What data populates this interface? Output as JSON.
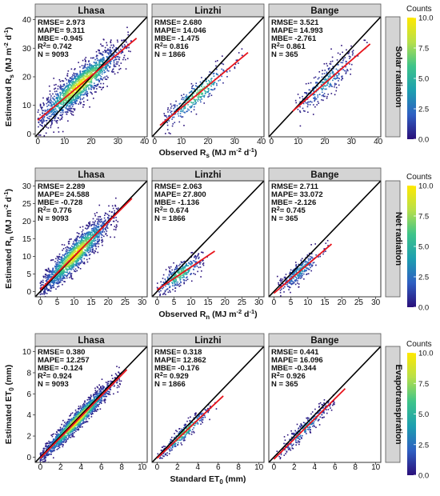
{
  "figure": {
    "color_scale": {
      "title": "Counts",
      "ticks": [
        "0.0",
        "2.5",
        "5.0",
        "7.5",
        "10.0"
      ],
      "stops": [
        "#2a0f7a",
        "#2f5fc2",
        "#1d9fb0",
        "#3ec48a",
        "#b8e04a",
        "#ffe800"
      ]
    },
    "colors": {
      "fit_line": "#e8141b",
      "identity_line": "#000000",
      "strip": "#d4d4d4"
    }
  },
  "chart_data": [
    {
      "type": "scatter",
      "row_title": "Solar radiation",
      "xlabel": {
        "main": "Observed R",
        "sub": "s",
        "unit": " (MJ m",
        "sup1": "-2",
        "mid": " d",
        "sup2": "-1",
        "end": ")"
      },
      "ylabel": {
        "main": "Estimated R",
        "sub": "s",
        "unit": " (MJ m",
        "sup1": "-2",
        "mid": " d",
        "sup2": "-1",
        "end": ")"
      },
      "xlim": [
        -1,
        41
      ],
      "ylim": [
        -1,
        41
      ],
      "xticks": [
        0,
        10,
        20,
        30,
        40
      ],
      "yticks": [
        0,
        10,
        20,
        30,
        40
      ],
      "panels": [
        {
          "site": "Lhasa",
          "stats": [
            "RMSE= 2.973",
            "MAPE= 9.311",
            "MBE= -0.945",
            "R²= 0.742",
            "N = 9093"
          ],
          "fit": {
            "x": [
              0,
              37
            ],
            "y": [
              4.8,
              33.5
            ]
          },
          "points": {
            "count": 9093,
            "x_range": [
              0,
              35
            ],
            "spread": 3.0
          }
        },
        {
          "site": "Linzhi",
          "stats": [
            "RMSE= 2.680",
            "MAPE= 14.046",
            "MBE= -1.475",
            "R²= 0.816",
            "N = 1866"
          ],
          "fit": {
            "x": [
              2,
              35
            ],
            "y": [
              3.0,
              28.5
            ]
          },
          "points": {
            "count": 1866,
            "x_range": [
              3,
              33
            ],
            "spread": 2.5
          }
        },
        {
          "site": "Bange",
          "stats": [
            "RMSE= 3.521",
            "MAPE= 14.993",
            "MBE= -2.761",
            "R²= 0.861",
            "N = 365"
          ],
          "fit": {
            "x": [
              8,
              37
            ],
            "y": [
              8.0,
              31.5
            ]
          },
          "points": {
            "count": 365,
            "x_range": [
              9,
              36
            ],
            "spread": 2.8
          }
        }
      ]
    },
    {
      "type": "scatter",
      "row_title": "Net radiation",
      "xlabel": {
        "main": "Observed R",
        "sub": "n",
        "unit": " (MJ m",
        "sup1": "-2",
        "mid": " d",
        "sup2": "-1",
        "end": ")"
      },
      "ylabel": {
        "main": "Estimated R",
        "sub": "n",
        "unit": " (MJ m",
        "sup1": "-2",
        "mid": " d",
        "sup2": "-1",
        "end": ")"
      },
      "xlim": [
        -1.5,
        31.5
      ],
      "ylim": [
        -1.5,
        31.5
      ],
      "xticks": [
        0,
        5,
        10,
        15,
        20,
        25,
        30
      ],
      "yticks": [
        0,
        5,
        10,
        15,
        20,
        25,
        30
      ],
      "panels": [
        {
          "site": "Lhasa",
          "stats": [
            "RMSE= 2.289",
            "MAPE= 24.588",
            "MBE= -0.728",
            "R²= 0.776",
            "N = 9093"
          ],
          "fit": {
            "x": [
              0,
              27
            ],
            "y": [
              0.5,
              26.5
            ]
          },
          "points": {
            "count": 9093,
            "x_range": [
              0,
              23
            ],
            "spread": 2.2
          }
        },
        {
          "site": "Linzhi",
          "stats": [
            "RMSE= 2.063",
            "MAPE= 27.800",
            "MBE= -1.136",
            "R²= 0.674",
            "N = 1866"
          ],
          "fit": {
            "x": [
              0,
              17
            ],
            "y": [
              0.5,
              11.5
            ]
          },
          "points": {
            "count": 1866,
            "x_range": [
              0,
              15
            ],
            "spread": 1.6
          }
        },
        {
          "site": "Bange",
          "stats": [
            "RMSE= 2.711",
            "MAPE= 33.072",
            "MBE= -2.126",
            "R²= 0.745",
            "N = 365"
          ],
          "fit": {
            "x": [
              0,
              17
            ],
            "y": [
              -0.5,
              13.5
            ]
          },
          "points": {
            "count": 365,
            "x_range": [
              1,
              16
            ],
            "spread": 1.6
          }
        }
      ]
    },
    {
      "type": "scatter",
      "row_title": "Evapotranspiration",
      "xlabel": {
        "main": "Standard ET",
        "sub": "0",
        "unit": " (mm)",
        "sup1": "",
        "mid": "",
        "sup2": "",
        "end": ""
      },
      "ylabel": {
        "main": "Estimated ET",
        "sub": "0",
        "unit": " (mm)",
        "sup1": "",
        "mid": "",
        "sup2": "",
        "end": ""
      },
      "xlim": [
        -0.5,
        10.5
      ],
      "ylim": [
        -0.5,
        10.5
      ],
      "xticks": [
        0,
        2,
        4,
        6,
        8,
        10
      ],
      "yticks": [
        0,
        2,
        4,
        6,
        8,
        10
      ],
      "panels": [
        {
          "site": "Lhasa",
          "stats": [
            "RMSE= 0.380",
            "MAPE= 12.257",
            "MBE= -0.124",
            "R²= 0.924",
            "N = 9093"
          ],
          "fit": {
            "x": [
              0,
              8.5
            ],
            "y": [
              -0.1,
              8.3
            ]
          },
          "points": {
            "count": 9093,
            "x_range": [
              0,
              8
            ],
            "spread": 0.45
          }
        },
        {
          "site": "Linzhi",
          "stats": [
            "RMSE= 0.318",
            "MAPE= 12.862",
            "MBE= -0.176",
            "R²= 0.929",
            "N = 1866"
          ],
          "fit": {
            "x": [
              0,
              6.5
            ],
            "y": [
              -0.1,
              5.8
            ]
          },
          "points": {
            "count": 1866,
            "x_range": [
              0,
              6
            ],
            "spread": 0.35
          }
        },
        {
          "site": "Bange",
          "stats": [
            "RMSE= 0.441",
            "MAPE= 16.096",
            "MBE= -0.344",
            "R²= 0.926",
            "N = 365"
          ],
          "fit": {
            "x": [
              0,
              7
            ],
            "y": [
              -0.2,
              6.5
            ]
          },
          "points": {
            "count": 365,
            "x_range": [
              0.3,
              6.5
            ],
            "spread": 0.4
          }
        }
      ]
    }
  ]
}
